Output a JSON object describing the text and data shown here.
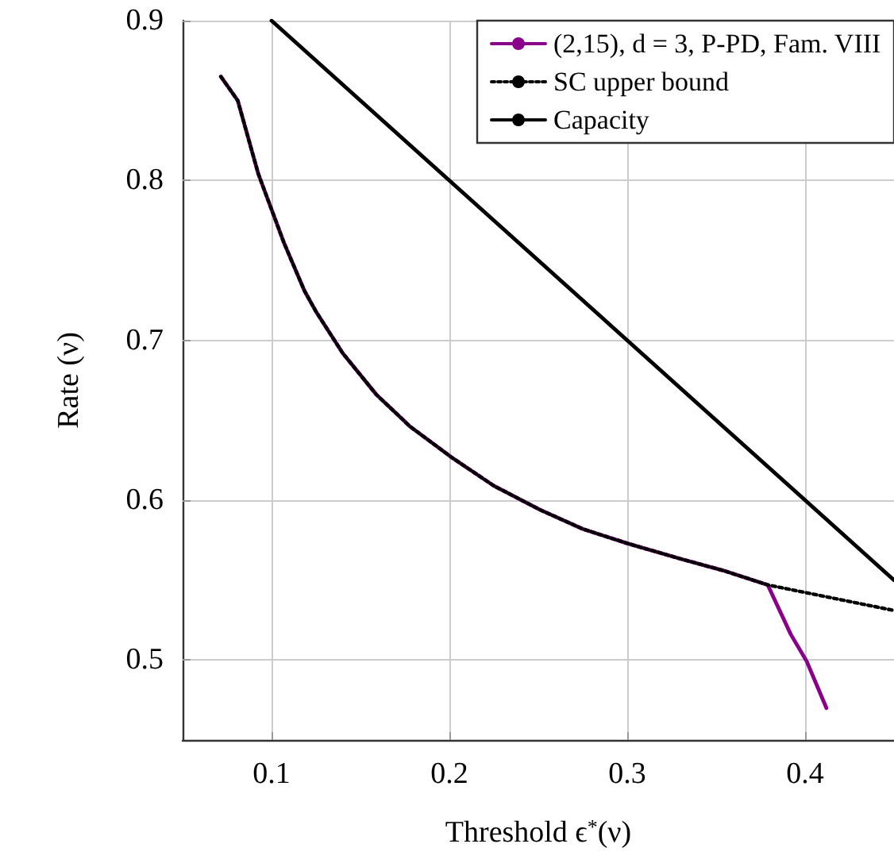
{
  "chart_data": {
    "type": "line",
    "xlabel": "Threshold ϵ$^{*}$(ν)",
    "ylabel": "Rate (ν)",
    "xlim": [
      0.05,
      0.45
    ],
    "ylim": [
      0.45,
      0.9
    ],
    "xticks": [
      0.1,
      0.2,
      0.3,
      0.4
    ],
    "yticks": [
      0.5,
      0.6,
      0.7,
      0.8,
      0.9
    ],
    "grid": true,
    "legend": "top right",
    "marker": "none",
    "series": [
      {
        "name": "(2,15), d = 3, P-PD, Fam. VIII",
        "color": "#8b008b",
        "line_style": "solid",
        "x": [
          0.0715,
          0.081,
          0.0926,
          0.107,
          0.1185,
          0.125,
          0.14,
          0.159,
          0.178,
          0.201,
          0.225,
          0.251,
          0.275,
          0.3,
          0.331,
          0.354,
          0.379,
          0.392,
          0.401,
          0.412
        ],
        "values": [
          0.865,
          0.85,
          0.804,
          0.761,
          0.731,
          0.718,
          0.692,
          0.666,
          0.646,
          0.627,
          0.609,
          0.594,
          0.582,
          0.573,
          0.563,
          0.556,
          0.547,
          0.516,
          0.499,
          0.47
        ]
      },
      {
        "name": "SC upper bound",
        "color": "#000000",
        "line_style": "dotted",
        "x": [
          0.0715,
          0.081,
          0.0926,
          0.107,
          0.1185,
          0.125,
          0.14,
          0.159,
          0.178,
          0.201,
          0.225,
          0.251,
          0.275,
          0.3,
          0.331,
          0.354,
          0.379,
          0.45
        ],
        "values": [
          0.865,
          0.85,
          0.804,
          0.761,
          0.731,
          0.718,
          0.692,
          0.666,
          0.646,
          0.627,
          0.609,
          0.594,
          0.582,
          0.573,
          0.563,
          0.556,
          0.547,
          0.531
        ]
      },
      {
        "name": "Capacity",
        "color": "#000000",
        "line_style": "solid",
        "x": [
          0.1,
          0.45
        ],
        "values": [
          0.9,
          0.55
        ]
      }
    ]
  }
}
